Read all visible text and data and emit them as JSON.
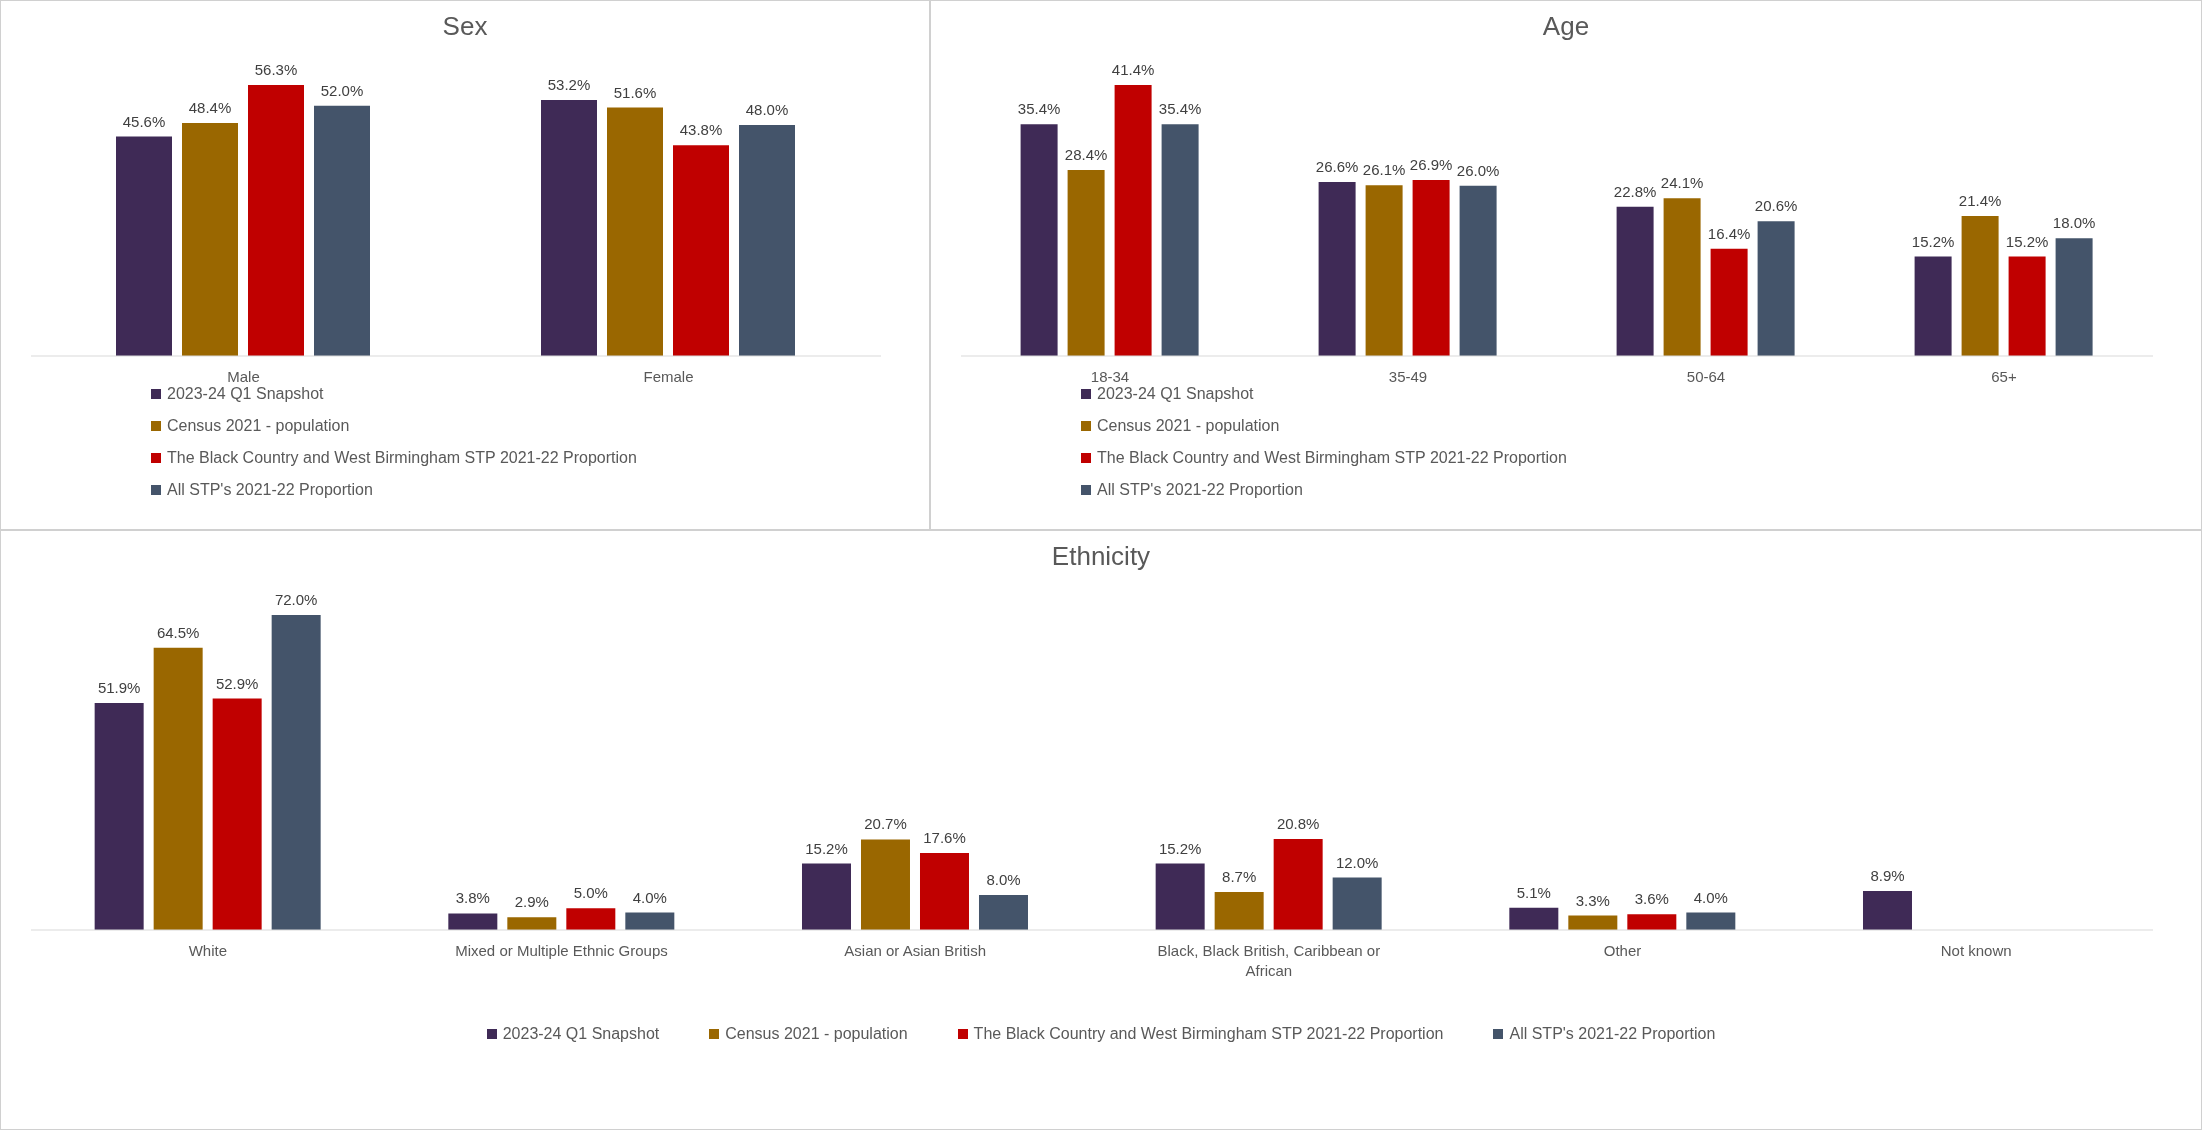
{
  "chart_data": [
    {
      "type": "bar",
      "title": "Sex",
      "categories": [
        "Male",
        "Female"
      ],
      "legend": "bottom",
      "series": [
        {
          "name": "2023-24 Q1 Snapshot",
          "color": "#3f2a56",
          "values": [
            45.6,
            53.2
          ],
          "value_labels": [
            "45.6%",
            "53.2%"
          ]
        },
        {
          "name": "Census 2021 - population",
          "color": "#9a6700",
          "values": [
            48.4,
            51.6
          ],
          "value_labels": [
            "48.4%",
            "51.6%"
          ]
        },
        {
          "name": "The Black Country and West Birmingham STP 2021-22 Proportion",
          "color": "#c00000",
          "values": [
            56.3,
            43.8
          ],
          "value_labels": [
            "56.3%",
            "43.8%"
          ]
        },
        {
          "name": "All STP's 2021-22 Proportion",
          "color": "#44546a",
          "values": [
            52.0,
            48.0
          ],
          "value_labels": [
            "52.0%",
            "48.0%"
          ]
        }
      ]
    },
    {
      "type": "bar",
      "title": "Age",
      "categories": [
        "18-34",
        "35-49",
        "50-64",
        "65+"
      ],
      "legend": "bottom",
      "series": [
        {
          "name": "2023-24 Q1 Snapshot",
          "color": "#3f2a56",
          "values": [
            35.4,
            26.6,
            22.8,
            15.2
          ],
          "value_labels": [
            "35.4%",
            "26.6%",
            "22.8%",
            "15.2%"
          ]
        },
        {
          "name": "Census 2021 - population",
          "color": "#9a6700",
          "values": [
            28.4,
            26.1,
            24.1,
            21.4
          ],
          "value_labels": [
            "28.4%",
            "26.1%",
            "24.1%",
            "21.4%"
          ]
        },
        {
          "name": "The Black Country and West Birmingham STP 2021-22 Proportion",
          "color": "#c00000",
          "values": [
            41.4,
            26.9,
            16.4,
            15.2
          ],
          "value_labels": [
            "41.4%",
            "26.9%",
            "16.4%",
            "15.2%"
          ]
        },
        {
          "name": "All STP's 2021-22 Proportion",
          "color": "#44546a",
          "values": [
            35.4,
            26.0,
            20.6,
            18.0
          ],
          "value_labels": [
            "35.4%",
            "26.0%",
            "20.6%",
            "18.0%"
          ]
        }
      ]
    },
    {
      "type": "bar",
      "title": "Ethnicity",
      "categories": [
        "White",
        "Mixed or Multiple Ethnic Groups",
        "Asian or Asian British",
        "Black, Black British, Caribbean or African",
        "Other",
        "Not known"
      ],
      "legend": "bottom",
      "series": [
        {
          "name": "2023-24 Q1 Snapshot",
          "color": "#3f2a56",
          "values": [
            51.9,
            3.8,
            15.2,
            15.2,
            5.1,
            8.9
          ],
          "value_labels": [
            "51.9%",
            "3.8%",
            "15.2%",
            "15.2%",
            "5.1%",
            "8.9%"
          ]
        },
        {
          "name": "Census 2021 - population",
          "color": "#9a6700",
          "values": [
            64.5,
            2.9,
            20.7,
            8.7,
            3.3,
            null
          ],
          "value_labels": [
            "64.5%",
            "2.9%",
            "20.7%",
            "8.7%",
            "3.3%",
            null
          ]
        },
        {
          "name": "The Black Country and West Birmingham STP 2021-22 Proportion",
          "color": "#c00000",
          "values": [
            52.9,
            5.0,
            17.6,
            20.8,
            3.6,
            null
          ],
          "value_labels": [
            "52.9%",
            "5.0%",
            "17.6%",
            "20.8%",
            "3.6%",
            null
          ]
        },
        {
          "name": "All STP's 2021-22 Proportion",
          "color": "#44546a",
          "values": [
            72.0,
            4.0,
            8.0,
            12.0,
            4.0,
            null
          ],
          "value_labels": [
            "72.0%",
            "4.0%",
            "8.0%",
            "12.0%",
            "4.0%",
            null
          ]
        }
      ]
    }
  ]
}
